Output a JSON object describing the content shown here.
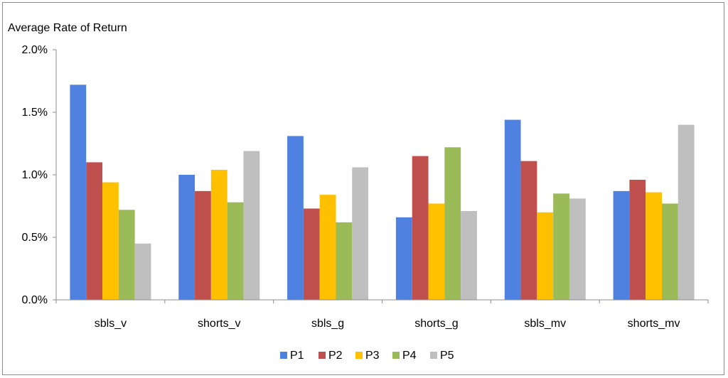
{
  "chart_data": {
    "type": "bar",
    "title": "",
    "ylabel": "Average Rate of Return",
    "xlabel": "",
    "ylim": [
      0,
      0.02
    ],
    "yticks": [
      {
        "value": 0.0,
        "label": "0.0%"
      },
      {
        "value": 0.005,
        "label": "0.5%"
      },
      {
        "value": 0.01,
        "label": "1.0%"
      },
      {
        "value": 0.015,
        "label": "1.5%"
      },
      {
        "value": 0.02,
        "label": "2.0%"
      }
    ],
    "grid": false,
    "legend_position": "bottom",
    "categories": [
      "sbls_v",
      "shorts_v",
      "sbls_g",
      "shorts_g",
      "sbls_mv",
      "shorts_mv"
    ],
    "series": [
      {
        "name": "P1",
        "color": "#4f81e0",
        "values": [
          0.0172,
          0.01,
          0.0131,
          0.0066,
          0.0144,
          0.0087
        ]
      },
      {
        "name": "P2",
        "color": "#c0504d",
        "values": [
          0.011,
          0.0087,
          0.0073,
          0.0115,
          0.0111,
          0.0096
        ]
      },
      {
        "name": "P3",
        "color": "#ffc000",
        "values": [
          0.0094,
          0.0104,
          0.0084,
          0.0077,
          0.007,
          0.0086
        ]
      },
      {
        "name": "P4",
        "color": "#9bbb59",
        "values": [
          0.0072,
          0.0078,
          0.0062,
          0.0122,
          0.0085,
          0.0077
        ]
      },
      {
        "name": "P5",
        "color": "#bfbfbf",
        "values": [
          0.0045,
          0.0119,
          0.0106,
          0.0071,
          0.0081,
          0.014
        ]
      }
    ]
  }
}
